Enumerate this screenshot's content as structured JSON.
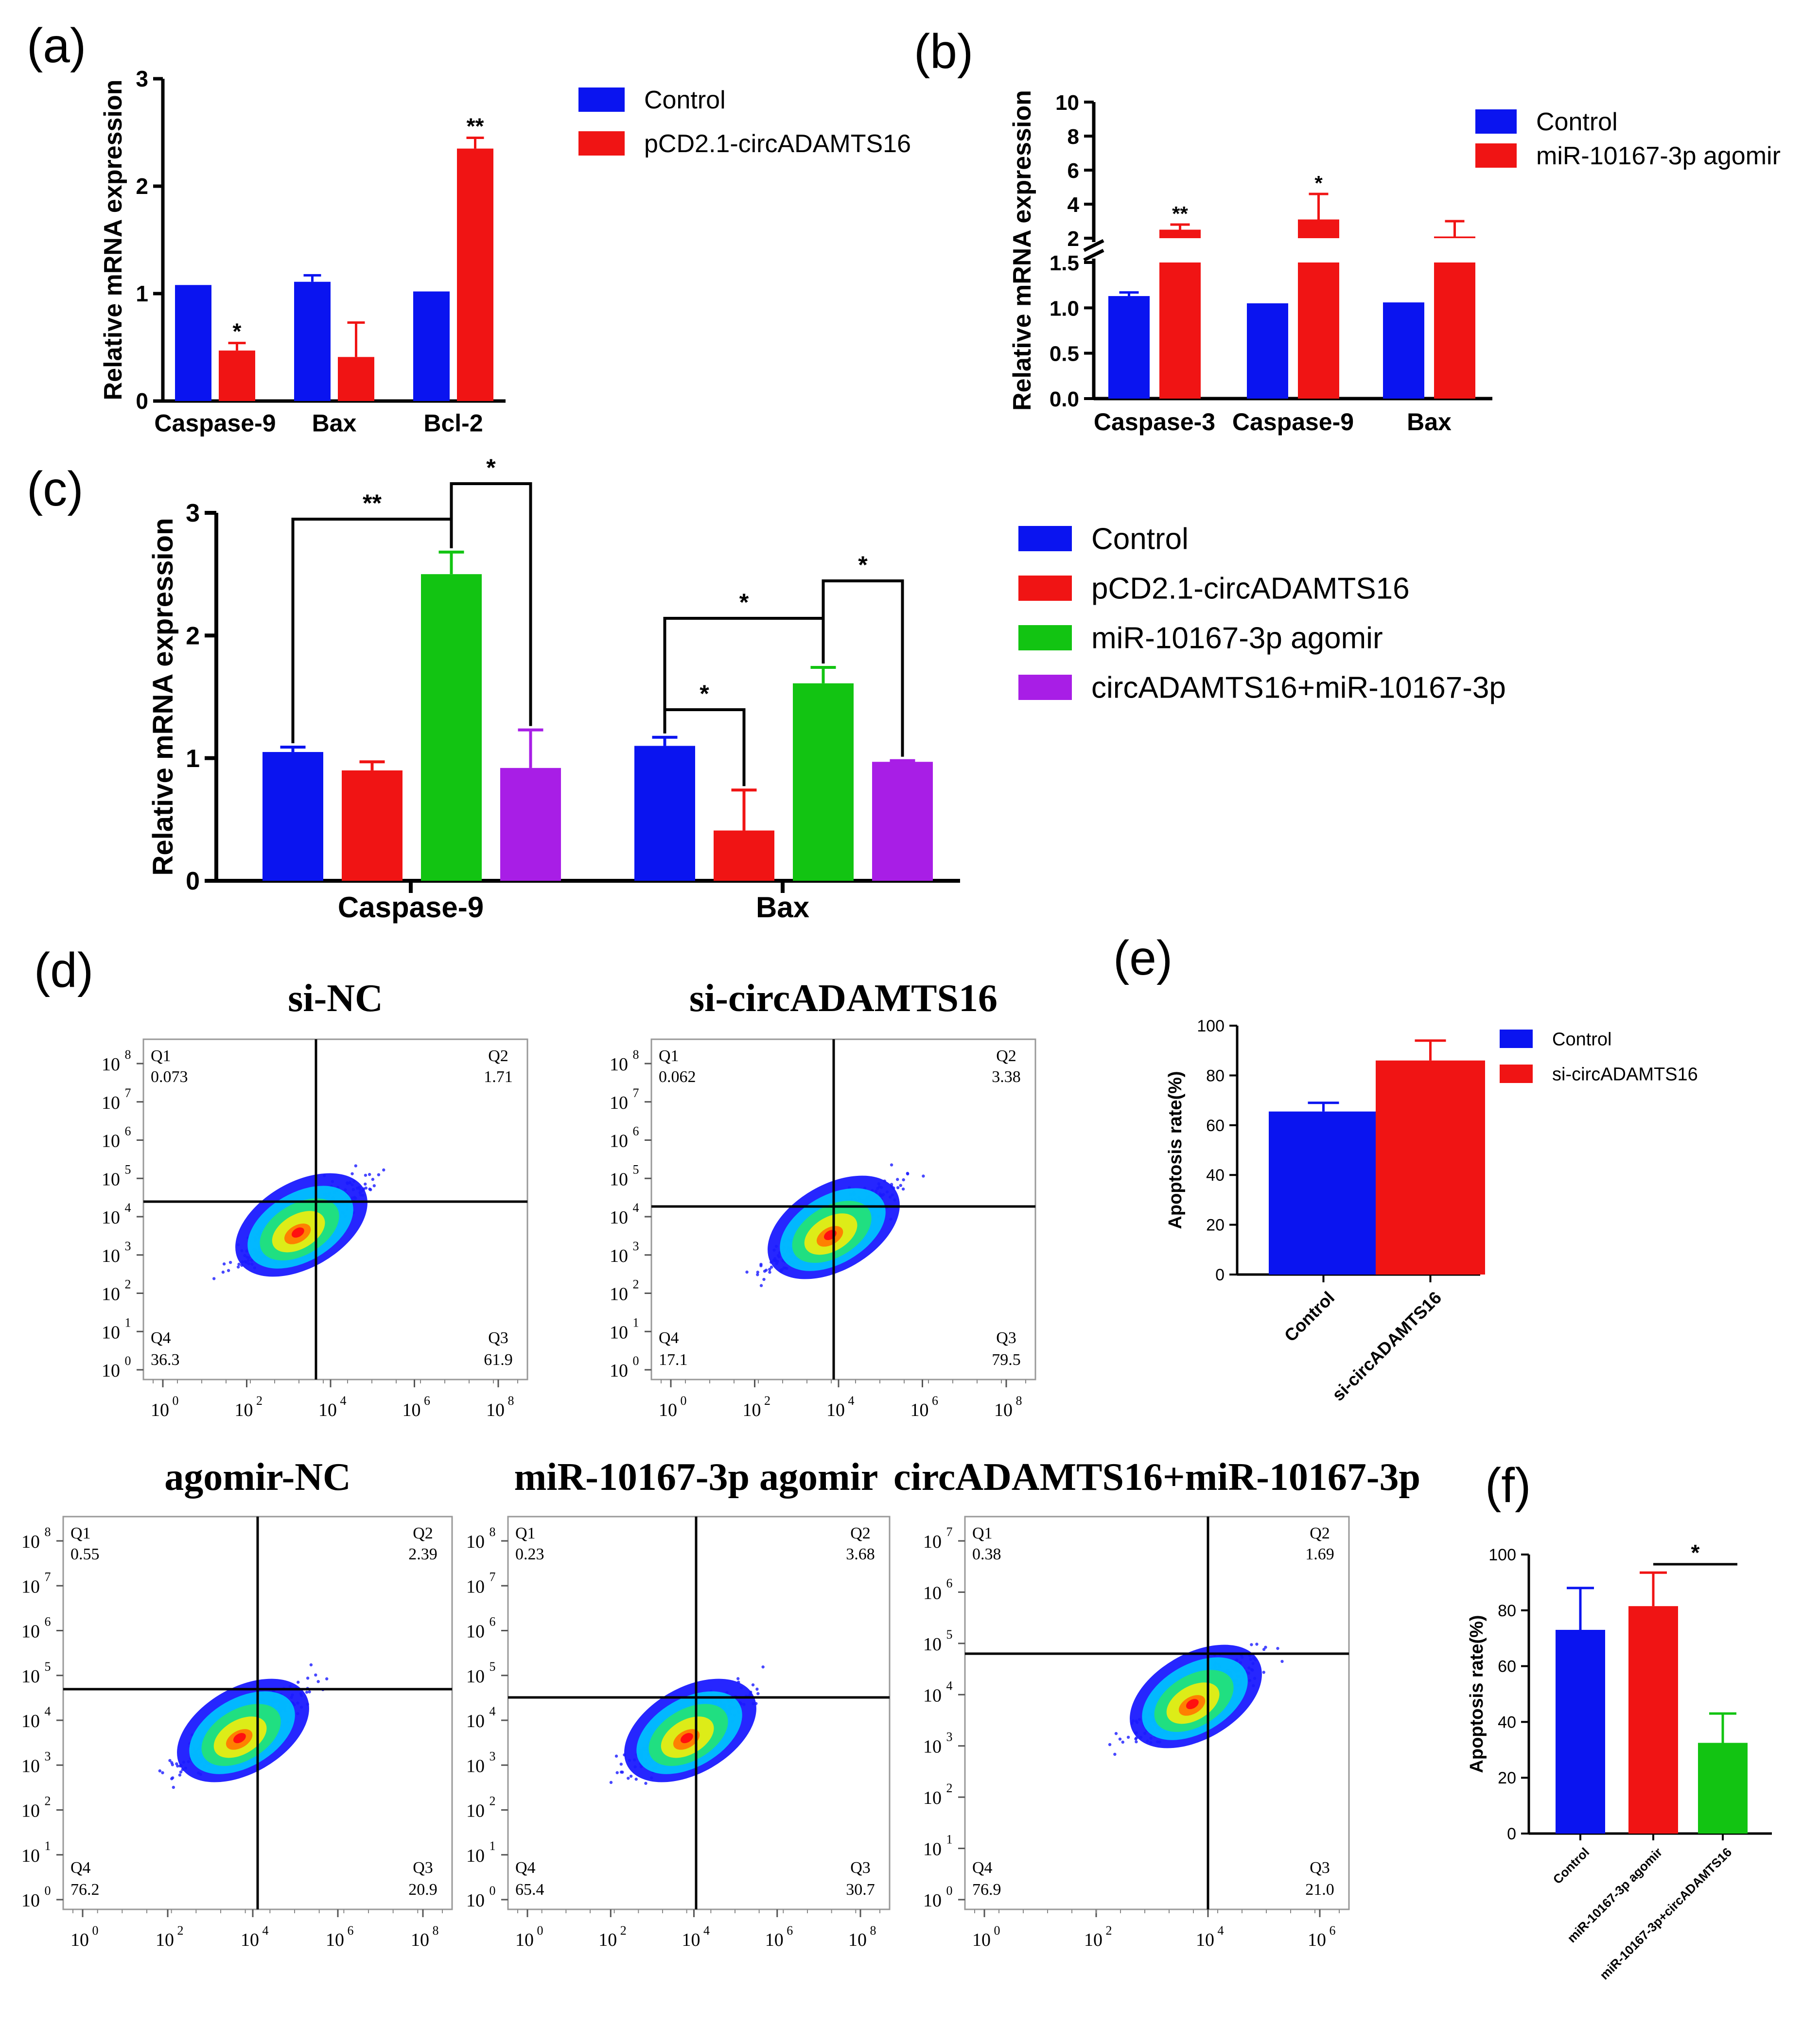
{
  "colors": {
    "blue": "#0a14f0",
    "red": "#f01414",
    "green": "#12c412",
    "purple": "#a81ee6"
  },
  "panel_labels": [
    "(a)",
    "(b)",
    "(c)",
    "(d)",
    "(e)",
    "(f)"
  ],
  "chart_data": [
    {
      "id": "a",
      "type": "bar",
      "ylabel": "Relative mRNA expression",
      "categories": [
        "Caspase-9",
        "Bax",
        "Bcl-2"
      ],
      "ylim": [
        0,
        3
      ],
      "yticks": [
        "0",
        "1",
        "2",
        "3"
      ],
      "series": [
        {
          "name": "Control",
          "color": "#0a14f0",
          "values": [
            1.08,
            1.11,
            1.02
          ],
          "errors": [
            0,
            0.06,
            0
          ]
        },
        {
          "name": "pCD2.1-circADAMTS16",
          "color": "#f01414",
          "values": [
            0.47,
            0.41,
            2.35
          ],
          "errors": [
            0.07,
            0.32,
            0.1
          ]
        }
      ],
      "annotations": [
        {
          "series": 1,
          "category": 0,
          "text": "*"
        },
        {
          "series": 1,
          "category": 2,
          "text": "**"
        }
      ],
      "legend_position": "top-right"
    },
    {
      "id": "b",
      "type": "bar",
      "ylabel": "Relative mRNA expression",
      "categories": [
        "Caspase-3",
        "Caspase-9",
        "Bax"
      ],
      "axis_break": true,
      "lower_ylim": [
        0,
        1.5
      ],
      "upper_ylim": [
        2,
        10
      ],
      "yticks_lower": [
        "0.0",
        "0.5",
        "1.0",
        "1.5"
      ],
      "yticks_upper": [
        "2",
        "4",
        "6",
        "8",
        "10"
      ],
      "series": [
        {
          "name": "Control",
          "color": "#0a14f0",
          "values": [
            1.13,
            1.05,
            1.06
          ],
          "errors": [
            0.04,
            0,
            0
          ]
        },
        {
          "name": "miR-10167-3p agomir",
          "color": "#f01414",
          "values": [
            2.5,
            3.1,
            2.1
          ],
          "errors": [
            0.3,
            1.5,
            0.9
          ]
        }
      ],
      "annotations": [
        {
          "series": 1,
          "category": 0,
          "text": "**"
        },
        {
          "series": 1,
          "category": 1,
          "text": "*"
        }
      ],
      "legend_position": "top-right"
    },
    {
      "id": "c",
      "type": "bar",
      "ylabel": "Relative mRNA expression",
      "categories": [
        "Caspase-9",
        "Bax"
      ],
      "ylim": [
        0,
        3
      ],
      "yticks": [
        "0",
        "1",
        "2",
        "3"
      ],
      "series": [
        {
          "name": "Control",
          "color": "#0a14f0",
          "values": [
            1.05,
            1.1
          ],
          "errors": [
            0.04,
            0.07
          ]
        },
        {
          "name": "pCD2.1-circADAMTS16",
          "color": "#f01414",
          "values": [
            0.9,
            0.41
          ],
          "errors": [
            0.07,
            0.33
          ]
        },
        {
          "name": "miR-10167-3p agomir",
          "color": "#12c412",
          "values": [
            2.5,
            1.61
          ],
          "errors": [
            0.18,
            0.13
          ]
        },
        {
          "name": "circADAMTS16+miR-10167-3p",
          "color": "#a81ee6",
          "values": [
            0.92,
            0.97
          ],
          "errors": [
            0.31,
            0.01
          ]
        }
      ],
      "significance": [
        {
          "category": 0,
          "from": 0,
          "to": 2,
          "text": "**"
        },
        {
          "category": 0,
          "from": 2,
          "to": 3,
          "text": "*"
        },
        {
          "category": 1,
          "from": 0,
          "to": 1,
          "text": "*"
        },
        {
          "category": 1,
          "from": 0,
          "to": 2,
          "text": "*"
        },
        {
          "category": 1,
          "from": 2,
          "to": 3,
          "text": "*"
        }
      ],
      "legend_position": "right"
    },
    {
      "id": "d",
      "type": "scatter",
      "subtype": "flow-cytometry",
      "plots": [
        {
          "title": "si-NC",
          "q1": "0.073",
          "q2": "1.71",
          "q3": "61.9",
          "q4": "36.3",
          "y_max_exp": 8,
          "x_max_exp": 8
        },
        {
          "title": "si-circADAMTS16",
          "q1": "0.062",
          "q2": "3.38",
          "q3": "79.5",
          "q4": "17.1",
          "y_max_exp": 8,
          "x_max_exp": 8
        },
        {
          "title": "agomir-NC",
          "q1": "0.55",
          "q2": "2.39",
          "q3": "20.9",
          "q4": "76.2",
          "y_max_exp": 8,
          "x_max_exp": 8
        },
        {
          "title": "miR-10167-3p agomir",
          "q1": "0.23",
          "q2": "3.68",
          "q3": "30.7",
          "q4": "65.4",
          "y_max_exp": 8,
          "x_max_exp": 8
        },
        {
          "title": "circADAMTS16+miR-10167-3p",
          "q1": "0.38",
          "q2": "1.69",
          "q3": "21.0",
          "q4": "76.9",
          "y_max_exp": 7,
          "x_max_exp": 6
        }
      ],
      "quadrant_labels": [
        "Q1",
        "Q2",
        "Q3",
        "Q4"
      ],
      "tick_base": "10"
    },
    {
      "id": "e",
      "type": "bar",
      "ylabel": "Apoptosis rate(%)",
      "categories": [
        "Control",
        "si-circADAMTS16"
      ],
      "ylim": [
        0,
        100
      ],
      "yticks": [
        "0",
        "20",
        "40",
        "60",
        "80",
        "100"
      ],
      "series": [
        {
          "name": "Apoptosis rate",
          "values": [
            65.5,
            86
          ],
          "errors": [
            3.5,
            8
          ],
          "colors": [
            "#0a14f0",
            "#f01414"
          ]
        }
      ],
      "legend": [
        "Control",
        "si-circADAMTS16"
      ],
      "legend_position": "top-right"
    },
    {
      "id": "f",
      "type": "bar",
      "ylabel": "Apoptosis rate(%)",
      "categories": [
        "Control",
        "miR-10167-3p agomir",
        "miR-10167-3p+circADAMTS16"
      ],
      "ylim": [
        0,
        100
      ],
      "yticks": [
        "0",
        "20",
        "40",
        "60",
        "80",
        "100"
      ],
      "series": [
        {
          "name": "Apoptosis rate",
          "values": [
            73,
            81.5,
            32.5
          ],
          "errors": [
            15,
            12,
            10.5
          ],
          "colors": [
            "#0a14f0",
            "#f01414",
            "#12c412"
          ]
        }
      ],
      "significance": [
        {
          "from": 1,
          "to": 2,
          "text": "*"
        }
      ]
    }
  ]
}
